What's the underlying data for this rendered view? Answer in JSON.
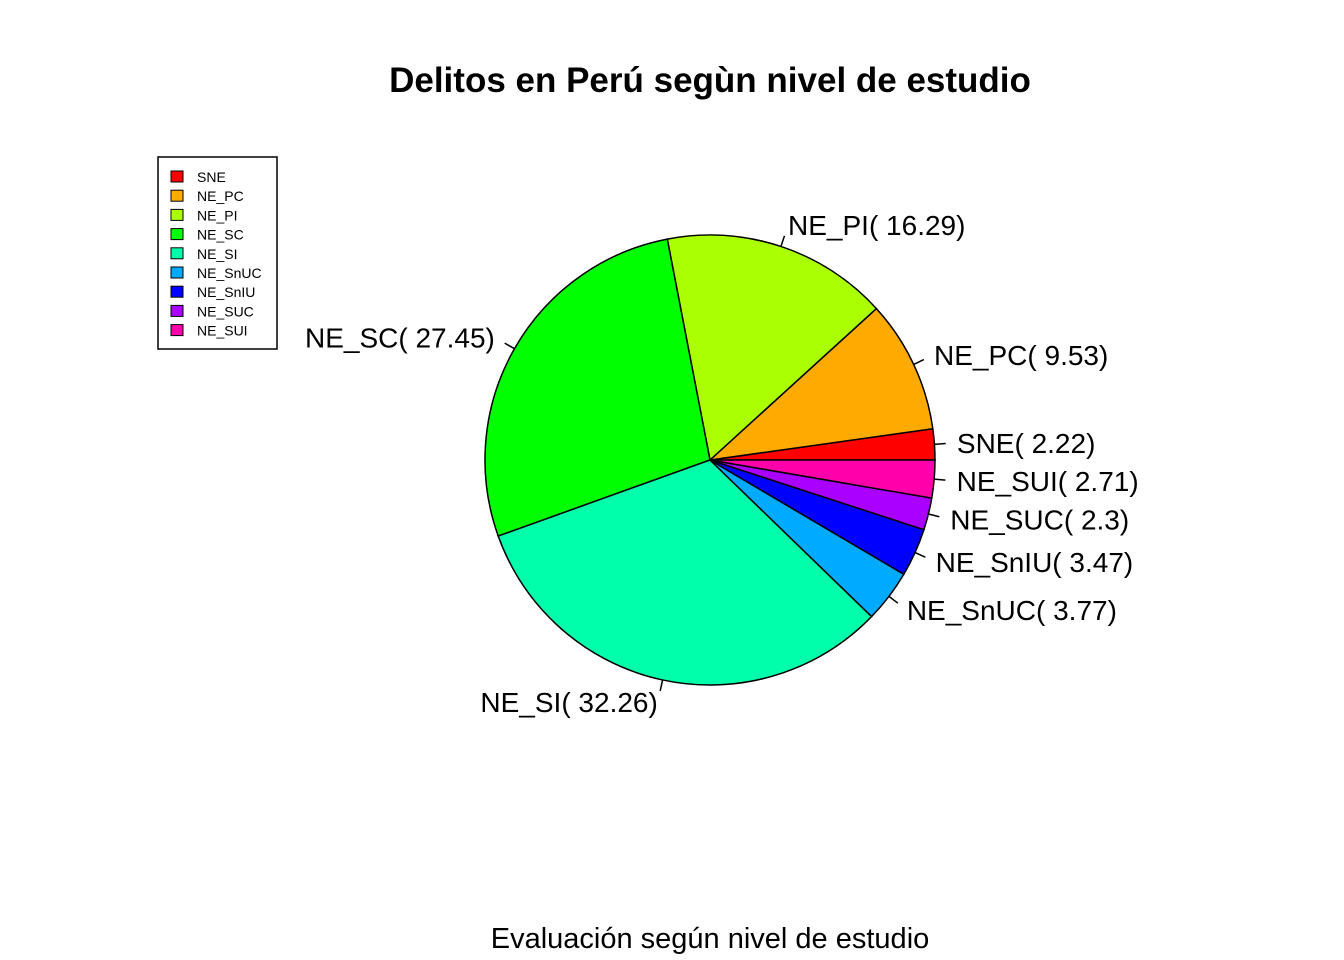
{
  "chart_data": {
    "type": "pie",
    "title": "Delitos en Perú segùn nivel de estudio",
    "subtitle": "Evaluación según nivel de estudio",
    "legend_position": "top-left",
    "slices": [
      {
        "name": "SNE",
        "label": "SNE( 2.22)",
        "value": 2.22,
        "color": "#FF0000"
      },
      {
        "name": "NE_PC",
        "label": "NE_PC( 9.53)",
        "value": 9.53,
        "color": "#FFAA00"
      },
      {
        "name": "NE_PI",
        "label": "NE_PI( 16.29)",
        "value": 16.29,
        "color": "#AAFF00"
      },
      {
        "name": "NE_SC",
        "label": "NE_SC( 27.45)",
        "value": 27.45,
        "color": "#00FF00"
      },
      {
        "name": "NE_SI",
        "label": "NE_SI( 32.26)",
        "value": 32.26,
        "color": "#00FFAA"
      },
      {
        "name": "NE_SnUC",
        "label": "NE_SnUC( 3.77)",
        "value": 3.77,
        "color": "#00AAFF"
      },
      {
        "name": "NE_SnIU",
        "label": "NE_SnIU( 3.47)",
        "value": 3.47,
        "color": "#0000FF"
      },
      {
        "name": "NE_SUC",
        "label": "NE_SUC( 2.3)",
        "value": 2.3,
        "color": "#AA00FF"
      },
      {
        "name": "NE_SUI",
        "label": "NE_SUI( 2.71)",
        "value": 2.71,
        "color": "#FF00AA"
      }
    ]
  }
}
